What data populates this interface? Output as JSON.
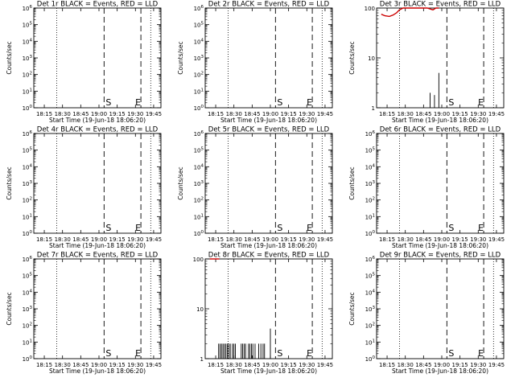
{
  "figure": {
    "background": "#ffffff",
    "foreground": "#000000",
    "events_color": "#000000",
    "lld_color": "#cc0000"
  },
  "chart_data": [
    {
      "type": "line",
      "title": "Det 1r BLACK = Events, RED = LLD",
      "xlabel": "Start Time (19-Jun-18 18:06:20)",
      "ylabel": "Counts/sec",
      "xticks": [
        "18:15",
        "18:30",
        "18:45",
        "19:00",
        "19:15",
        "19:30",
        "19:45"
      ],
      "ylog": true,
      "ylim": [
        1,
        1000000
      ],
      "yticks": [
        "10^0",
        "10^1",
        "10^2",
        "10^3",
        "10^4",
        "10^5",
        "10^6"
      ],
      "markers": [
        "S",
        "E"
      ],
      "series": []
    },
    {
      "type": "line",
      "title": "Det 2r BLACK = Events, RED = LLD",
      "xlabel": "Start Time (19-Jun-18 18:06:20)",
      "ylabel": "Counts/sec",
      "xticks": [
        "18:15",
        "18:30",
        "18:45",
        "19:00",
        "19:15",
        "19:30",
        "19:45"
      ],
      "ylog": true,
      "ylim": [
        1,
        1000000
      ],
      "yticks": [
        "10^0",
        "10^1",
        "10^2",
        "10^3",
        "10^4",
        "10^5",
        "10^6"
      ],
      "markers": [
        "S",
        "E"
      ],
      "series": []
    },
    {
      "type": "line",
      "title": "Det 3r BLACK = Events, RED = LLD",
      "xlabel": "Start Time (19-Jun-18 18:06:20)",
      "ylabel": "Counts/sec",
      "xticks": [
        "18:15",
        "18:30",
        "18:45",
        "19:00",
        "19:15",
        "19:30",
        "19:45"
      ],
      "ylog": true,
      "ylim": [
        1,
        100
      ],
      "yticks": [
        "1",
        "10",
        "100"
      ],
      "markers": [
        "S",
        "E"
      ],
      "series": [
        {
          "color": "#000000",
          "style": "spikes",
          "x": [
            18.84,
            18.9,
            18.96
          ],
          "y": [
            2,
            1.8,
            5
          ]
        },
        {
          "color": "#cc0000",
          "style": "line",
          "x": [
            18.17,
            18.22,
            18.28,
            18.33,
            18.38,
            18.42,
            18.47,
            18.53,
            18.6,
            18.67,
            18.75,
            18.8,
            18.85,
            18.88,
            18.92,
            18.96
          ],
          "y": [
            75,
            70,
            68,
            72,
            80,
            92,
            100,
            100,
            100,
            100,
            100,
            100,
            95,
            92,
            100,
            100
          ]
        }
      ]
    },
    {
      "type": "line",
      "title": "Det 4r BLACK = Events, RED = LLD",
      "xlabel": "Start Time (19-Jun-18 18:06:20)",
      "ylabel": "Counts/sec",
      "xticks": [
        "18:15",
        "18:30",
        "18:45",
        "19:00",
        "19:15",
        "19:30",
        "19:45"
      ],
      "ylog": true,
      "ylim": [
        1,
        1000000
      ],
      "yticks": [
        "10^0",
        "10^1",
        "10^2",
        "10^3",
        "10^4",
        "10^5",
        "10^6"
      ],
      "markers": [
        "S",
        "E"
      ],
      "series": []
    },
    {
      "type": "line",
      "title": "Det 5r BLACK = Events, RED = LLD",
      "xlabel": "Start Time (19-Jun-18 18:06:20)",
      "ylabel": "Counts/sec",
      "xticks": [
        "18:15",
        "18:30",
        "18:45",
        "19:00",
        "19:15",
        "19:30",
        "19:45"
      ],
      "ylog": true,
      "ylim": [
        1,
        1000000
      ],
      "yticks": [
        "10^0",
        "10^1",
        "10^2",
        "10^3",
        "10^4",
        "10^5",
        "10^6"
      ],
      "markers": [
        "S",
        "E"
      ],
      "series": []
    },
    {
      "type": "line",
      "title": "Det 6r BLACK = Events, RED = LLD",
      "xlabel": "Start Time (19-Jun-18 18:06:20)",
      "ylabel": "Counts/sec",
      "xticks": [
        "18:15",
        "18:30",
        "18:45",
        "19:00",
        "19:15",
        "19:30",
        "19:45"
      ],
      "ylog": true,
      "ylim": [
        1,
        1000000
      ],
      "yticks": [
        "10^0",
        "10^1",
        "10^2",
        "10^3",
        "10^4",
        "10^5",
        "10^6"
      ],
      "markers": [
        "S",
        "E"
      ],
      "series": []
    },
    {
      "type": "line",
      "title": "Det 7r BLACK = Events, RED = LLD",
      "xlabel": "Start Time (19-Jun-18 18:06:20)",
      "ylabel": "Counts/sec",
      "xticks": [
        "18:15",
        "18:30",
        "18:45",
        "19:00",
        "19:15",
        "19:30",
        "19:45"
      ],
      "ylog": true,
      "ylim": [
        1,
        1000000
      ],
      "yticks": [
        "10^0",
        "10^1",
        "10^2",
        "10^3",
        "10^4",
        "10^5",
        "10^6"
      ],
      "markers": [
        "S",
        "E"
      ],
      "series": []
    },
    {
      "type": "line",
      "title": "Det 8r BLACK = Events, RED = LLD",
      "xlabel": "Start Time (19-Jun-18 18:06:20)",
      "ylabel": "",
      "xticks": [
        "18:15",
        "18:30",
        "18:45",
        "19:00",
        "19:15",
        "19:30",
        "19:45"
      ],
      "ylog": true,
      "ylim": [
        1,
        100
      ],
      "yticks": [
        "1",
        "10",
        "100"
      ],
      "markers": [
        "S",
        "E"
      ],
      "series": [
        {
          "color": "#000000",
          "style": "spikes",
          "x": [
            18.29,
            18.31,
            18.33,
            18.35,
            18.37,
            18.39,
            18.41,
            18.43,
            18.45,
            18.48,
            18.5,
            18.52,
            18.6,
            18.62,
            18.64,
            18.66,
            18.7,
            18.72,
            18.74,
            18.76,
            18.79,
            18.84,
            18.87,
            18.9,
            18.92,
            19.0
          ],
          "y": [
            2,
            2,
            2,
            2,
            2,
            2,
            2,
            2,
            2,
            2,
            2,
            2,
            2,
            2,
            2,
            2,
            2,
            2,
            2,
            2,
            2,
            2,
            2,
            2,
            2,
            4
          ]
        },
        {
          "color": "#cc0000",
          "style": "line",
          "x": [
            18.17,
            18.25,
            18.3
          ],
          "y": [
            100,
            100,
            100
          ]
        }
      ]
    },
    {
      "type": "line",
      "title": "Det 9r BLACK = Events, RED = LLD",
      "xlabel": "Start Time (19-Jun-18 18:06:20)",
      "ylabel": "Counts/sec",
      "xticks": [
        "18:15",
        "18:30",
        "18:45",
        "19:00",
        "19:15",
        "19:30",
        "19:45"
      ],
      "ylog": true,
      "ylim": [
        1,
        1000000
      ],
      "yticks": [
        "10^0",
        "10^1",
        "10^2",
        "10^3",
        "10^4",
        "10^5",
        "10^6"
      ],
      "markers": [
        "S",
        "E"
      ],
      "series": []
    }
  ]
}
